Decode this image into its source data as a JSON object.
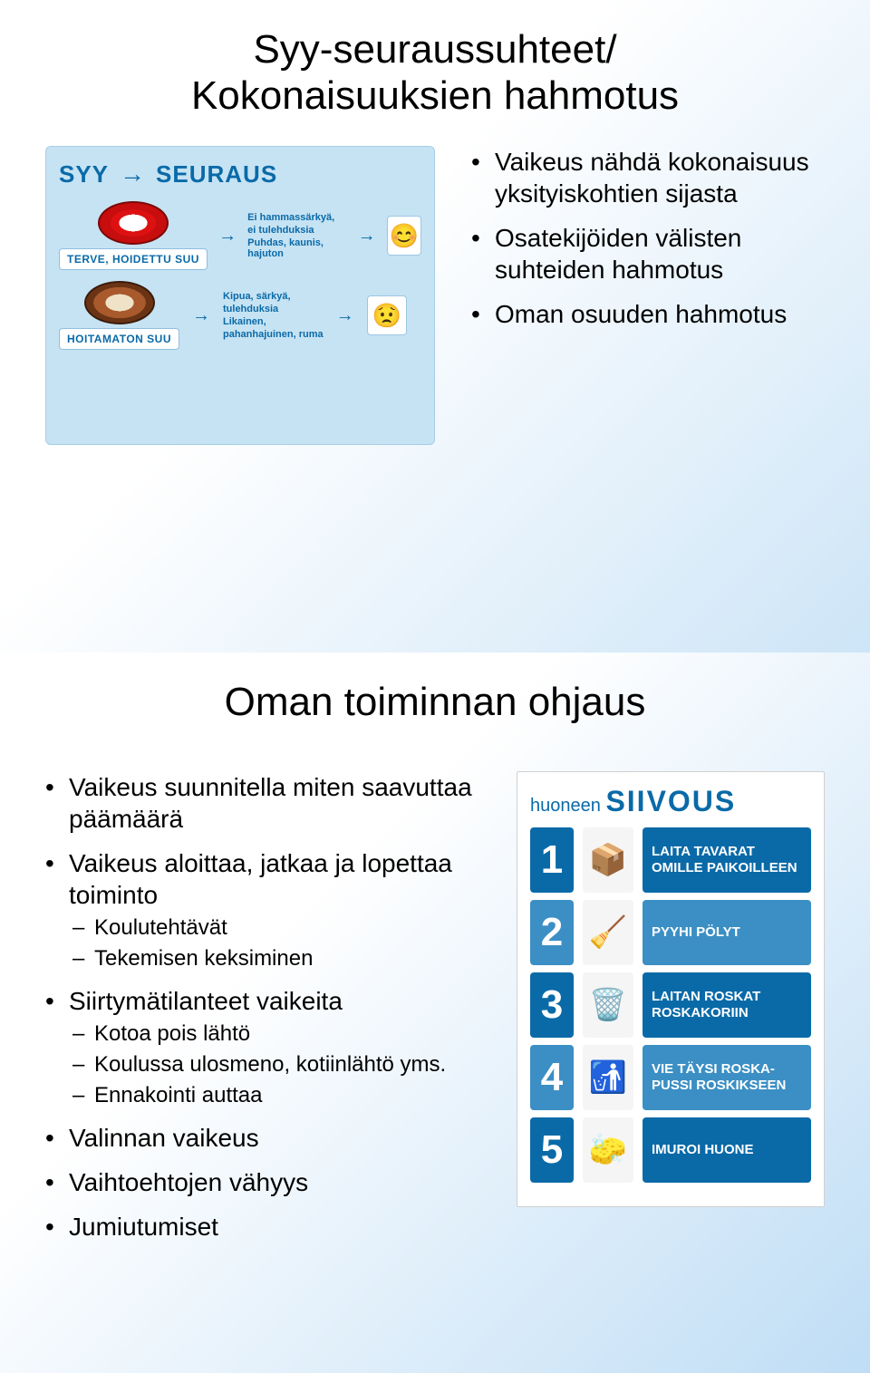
{
  "slide1": {
    "title_line1": "Syy-seuraussuhteet/",
    "title_line2": "Kokonaisuuksien hahmotus",
    "bullets": [
      "Vaikeus nähdä kokonaisuus yksityiskohtien sijasta",
      "Osatekijöiden välisten suhteiden hahmotus",
      "Oman osuuden hahmotus"
    ],
    "diagram": {
      "head_left": "SYY",
      "head_right": "SEURAUS",
      "rows": [
        {
          "tag": "TERVE, HOIDETTU SUU",
          "caption1": "Ei hammassärkyä,",
          "caption2": "ei tulehduksia",
          "caption3": "Puhdas, kaunis, hajuton",
          "face": "😊",
          "mouth_class": "healthy"
        },
        {
          "tag": "HOITAMATON SUU",
          "caption1": "Kipua, särkyä,",
          "caption2": "tulehduksia",
          "caption3": "Likainen,",
          "caption4": "pahanhajuinen, ruma",
          "face": "😟",
          "mouth_class": "bad"
        }
      ]
    }
  },
  "slide2": {
    "title": "Oman toiminnan ohjaus",
    "bullets": [
      {
        "text": "Vaikeus suunnitella miten saavuttaa päämäärä"
      },
      {
        "text": "Vaikeus aloittaa, jatkaa ja lopettaa toiminto",
        "sub": [
          "Koulutehtävät",
          "Tekemisen keksiminen"
        ]
      },
      {
        "text": "Siirtymätilanteet vaikeita",
        "sub": [
          "Kotoa pois lähtö",
          "Koulussa ulosmeno, kotiinlähtö yms.",
          "Ennakointi auttaa"
        ]
      },
      {
        "text": "Valinnan vaikeus"
      },
      {
        "text": "Vaihtoehtojen vähyys"
      },
      {
        "text": "Jumiutumiset"
      }
    ],
    "siivous": {
      "title_small": "huoneen",
      "title_big": "SIIVOUS",
      "steps": [
        {
          "n": "1",
          "color": "#0a6aa8",
          "icon": "📦",
          "label": "LAITA TAVARAT OMILLE PAIKOILLEEN"
        },
        {
          "n": "2",
          "color": "#3b8fc4",
          "icon": "🧹",
          "label": "PYYHI PÖLYT"
        },
        {
          "n": "3",
          "color": "#0a6aa8",
          "icon": "🗑️",
          "label": "LAITAN ROSKAT ROSKAKORIIN"
        },
        {
          "n": "4",
          "color": "#3b8fc4",
          "icon": "🚮",
          "label": "VIE TÄYSI ROSKA-PUSSI ROSKIKSEEN"
        },
        {
          "n": "5",
          "color": "#0a6aa8",
          "icon": "🧽",
          "label": "IMUROI HUONE"
        }
      ]
    }
  }
}
